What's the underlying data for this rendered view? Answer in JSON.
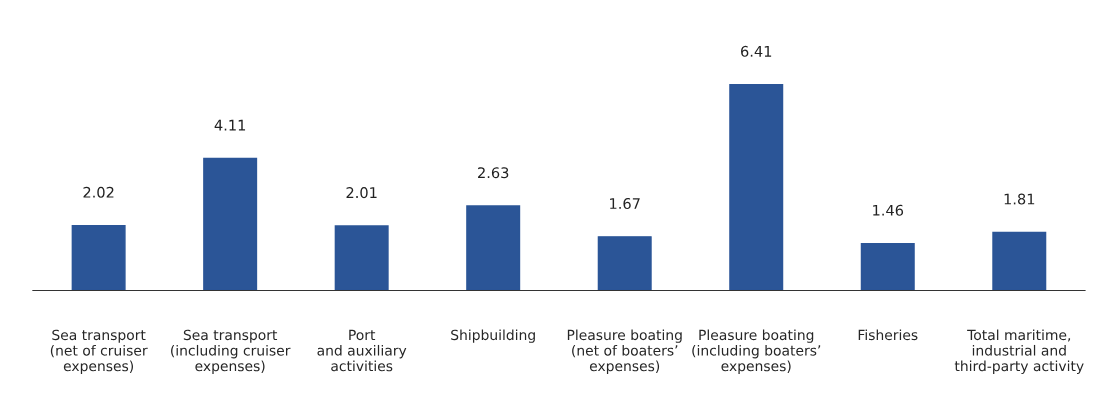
{
  "chart_data": {
    "type": "bar",
    "categories": [
      "Sea transport\n(net of cruiser\nexpenses)",
      "Sea transport\n(including cruiser\nexpenses)",
      "Port\nand auxiliary\nactivities",
      "Shipbuilding",
      "Pleasure boating\n(net of boaters’\nexpenses)",
      "Pleasure boating\n(including boaters’\nexpenses)",
      "Fisheries",
      "Total maritime,\nindustrial and\nthird-party activity"
    ],
    "values": [
      2.02,
      4.11,
      2.01,
      2.63,
      1.67,
      6.41,
      1.46,
      1.81
    ],
    "color": "#2b5597",
    "data_labels": true,
    "grid": false,
    "legend": false
  }
}
